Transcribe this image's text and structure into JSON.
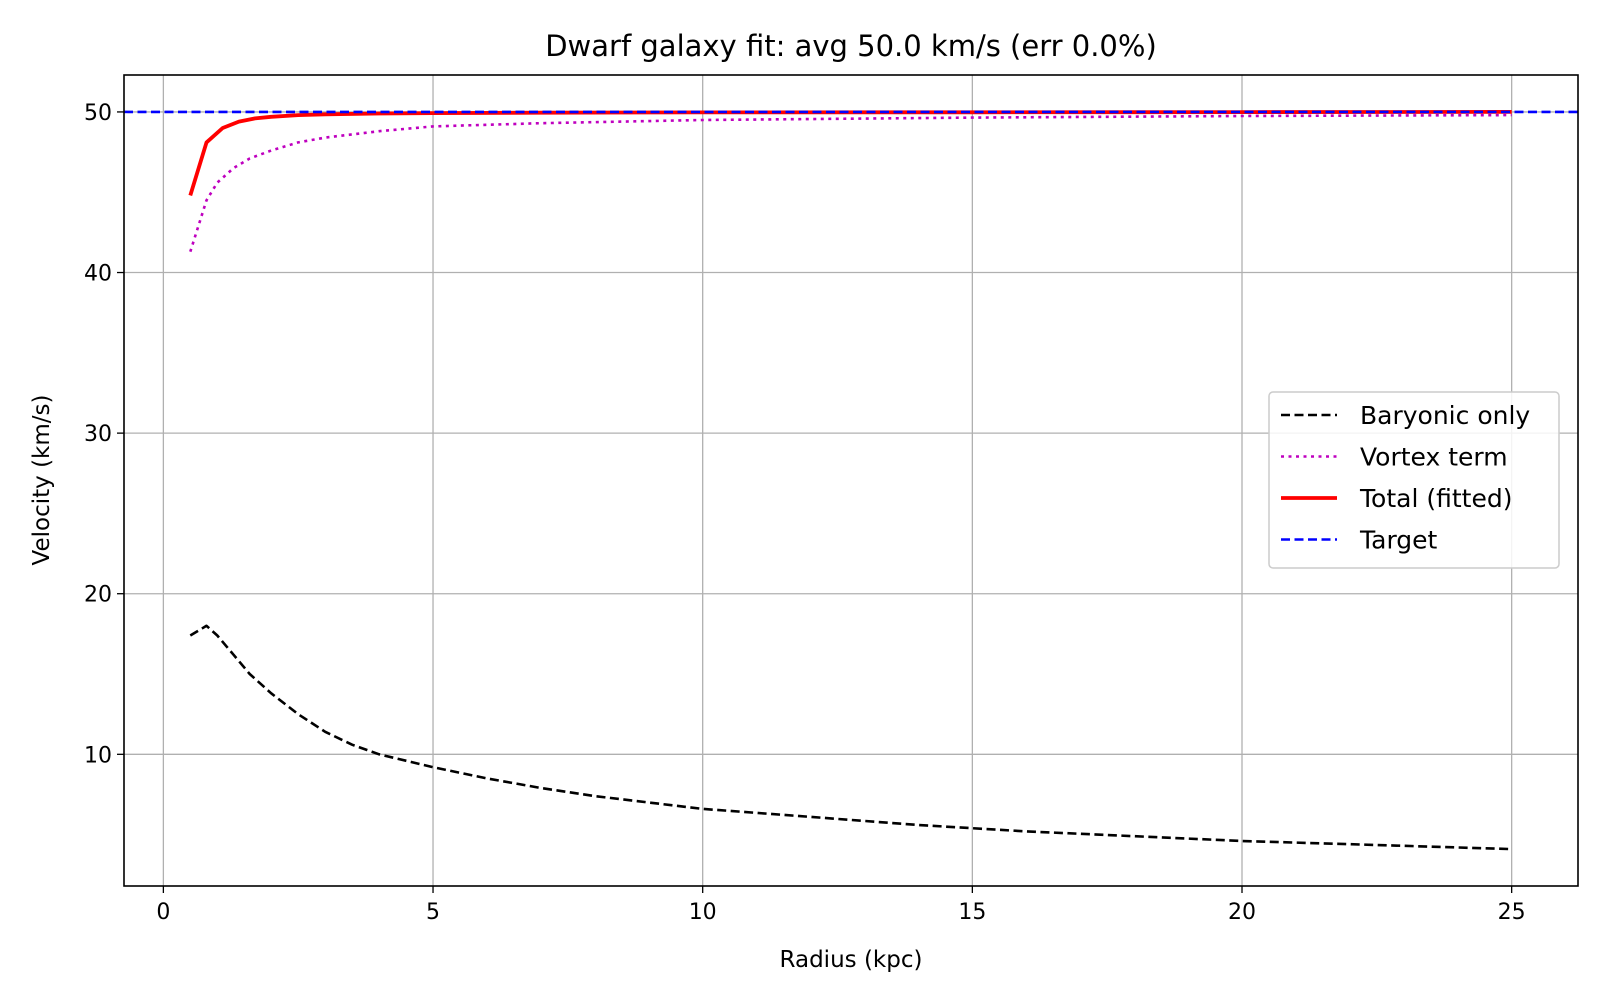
{
  "chart_data": {
    "type": "line",
    "title": "Dwarf galaxy fit: avg 50.0 km/s (err 0.0%)",
    "xlabel": "Radius (kpc)",
    "ylabel": "Velocity (km/s)",
    "xlim": [
      -0.73,
      26.23
    ],
    "ylim": [
      1.8,
      52.3
    ],
    "xticks": [
      0,
      5,
      10,
      15,
      20,
      25
    ],
    "yticks": [
      10,
      20,
      30,
      40,
      50
    ],
    "grid": true,
    "legend_position": "center-right",
    "series": [
      {
        "name": "Baryonic only",
        "color": "#000000",
        "style": "dashed",
        "x": [
          0.5,
          0.8,
          1.0,
          1.3,
          1.6,
          2.0,
          2.5,
          3.0,
          3.5,
          4.0,
          5.0,
          6.0,
          7.0,
          8.0,
          9.0,
          10.0,
          12.0,
          14.0,
          16.0,
          18.0,
          20.0,
          22.0,
          25.0
        ],
        "y": [
          17.4,
          18.0,
          17.4,
          16.2,
          15.0,
          13.8,
          12.5,
          11.4,
          10.6,
          10.0,
          9.2,
          8.5,
          7.9,
          7.4,
          7.0,
          6.6,
          6.1,
          5.6,
          5.2,
          4.9,
          4.6,
          4.4,
          4.1
        ]
      },
      {
        "name": "Vortex term",
        "color": "#bf00bf",
        "style": "dotted",
        "x": [
          0.5,
          0.8,
          1.0,
          1.3,
          1.6,
          2.0,
          2.5,
          3.0,
          4.0,
          5.0,
          7.0,
          10.0,
          15.0,
          20.0,
          25.0
        ],
        "y": [
          41.3,
          44.5,
          45.6,
          46.5,
          47.1,
          47.6,
          48.1,
          48.4,
          48.8,
          49.1,
          49.3,
          49.5,
          49.65,
          49.75,
          49.8
        ]
      },
      {
        "name": "Total (fitted)",
        "color": "#ff0000",
        "style": "solid",
        "x": [
          0.5,
          0.8,
          1.1,
          1.4,
          1.7,
          2.0,
          2.5,
          3.0,
          4.0,
          5.0,
          7.0,
          10.0,
          15.0,
          20.0,
          25.0
        ],
        "y": [
          44.8,
          48.1,
          49.0,
          49.4,
          49.6,
          49.7,
          49.8,
          49.85,
          49.9,
          49.93,
          49.95,
          49.97,
          49.98,
          49.99,
          50.0
        ]
      },
      {
        "name": "Target",
        "color": "#0000ff",
        "style": "dashed",
        "x": [
          -0.73,
          26.23
        ],
        "y": [
          50.0,
          50.0
        ]
      }
    ]
  }
}
